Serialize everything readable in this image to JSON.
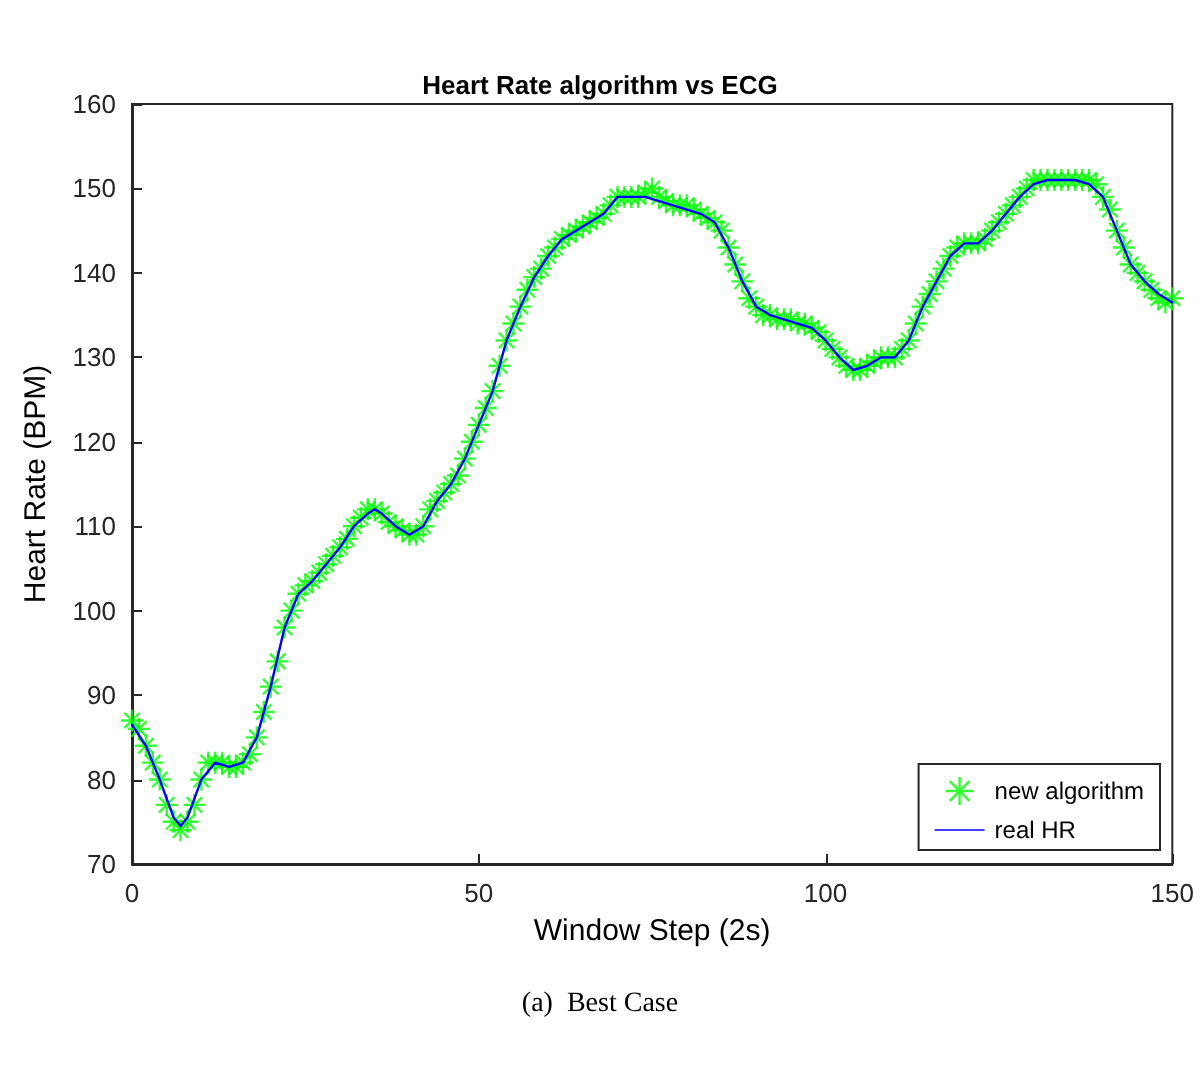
{
  "chart_data": {
    "type": "line",
    "title": "Heart Rate algorithm vs ECG",
    "xlabel": "Window Step (2s)",
    "ylabel": "Heart Rate (BPM)",
    "annotations": [
      "(a)  Best Case"
    ],
    "xlim": [
      0,
      150
    ],
    "xticks": [
      0,
      50,
      100,
      150
    ],
    "ylim": [
      70,
      160
    ],
    "yticks": [
      70,
      80,
      90,
      100,
      110,
      120,
      130,
      140,
      150,
      160
    ],
    "grid": false,
    "legend": "bottom right",
    "series": [
      {
        "name": "new algorithm",
        "type": "scatter",
        "marker": "cross",
        "color": "#00ff00",
        "x": [
          0,
          1,
          2,
          3,
          4,
          5,
          6,
          7,
          8,
          9,
          10,
          11,
          12,
          13,
          14,
          15,
          16,
          17,
          18,
          19,
          20,
          21,
          22,
          23,
          24,
          25,
          26,
          27,
          28,
          29,
          30,
          31,
          32,
          33,
          34,
          35,
          36,
          37,
          38,
          39,
          40,
          41,
          42,
          43,
          44,
          45,
          46,
          47,
          48,
          49,
          50,
          51,
          52,
          53,
          54,
          55,
          56,
          57,
          58,
          59,
          60,
          61,
          62,
          63,
          64,
          65,
          66,
          67,
          68,
          69,
          70,
          71,
          72,
          73,
          74,
          75,
          76,
          77,
          78,
          79,
          80,
          81,
          82,
          83,
          84,
          85,
          86,
          87,
          88,
          89,
          90,
          91,
          92,
          93,
          94,
          95,
          96,
          97,
          98,
          99,
          100,
          101,
          102,
          103,
          104,
          105,
          106,
          107,
          108,
          109,
          110,
          111,
          112,
          113,
          114,
          115,
          116,
          117,
          118,
          119,
          120,
          121,
          122,
          123,
          124,
          125,
          126,
          127,
          128,
          129,
          130,
          131,
          132,
          133,
          134,
          135,
          136,
          137,
          138,
          139,
          140,
          141,
          142,
          143,
          144,
          145,
          146,
          147,
          148,
          149,
          150
        ],
        "values": [
          87,
          86,
          84,
          82,
          80,
          77,
          75,
          74,
          75,
          77,
          80,
          82,
          82,
          82,
          81.5,
          81.5,
          82,
          83,
          85,
          88,
          91,
          94,
          98,
          100,
          102,
          103,
          103.5,
          104.5,
          105.5,
          106.5,
          107.5,
          108.5,
          110,
          111,
          112,
          112,
          111.5,
          110.5,
          110,
          109.5,
          109,
          109,
          110,
          112,
          113,
          114,
          115,
          116,
          118,
          120,
          122,
          124,
          126,
          129,
          132,
          134,
          136,
          138,
          139.5,
          140.5,
          142,
          143,
          144,
          144.5,
          145,
          145.5,
          146,
          146.5,
          147,
          148,
          149,
          149,
          149,
          149,
          149.5,
          150,
          149,
          148.5,
          148,
          148,
          148,
          147.5,
          147,
          146.5,
          146,
          145,
          143,
          141,
          139,
          137,
          136,
          135,
          135,
          134.5,
          134.5,
          134.5,
          134,
          134,
          133.5,
          133,
          132,
          131,
          130,
          129,
          128.5,
          128.5,
          129,
          129.5,
          130,
          130,
          130,
          131,
          132,
          134,
          136,
          137.5,
          139,
          140.5,
          142,
          143,
          143.5,
          143.5,
          143.5,
          144,
          145,
          146,
          147,
          148,
          149,
          150,
          151,
          151,
          151,
          151,
          151,
          151,
          151,
          151,
          151,
          150.5,
          149,
          147.5,
          145,
          143,
          141,
          140,
          139,
          138,
          137,
          136.5,
          137
        ]
      },
      {
        "name": "real HR",
        "color": "#0000ff",
        "x": [
          0,
          2,
          4,
          6,
          7,
          8,
          10,
          12,
          14,
          16,
          18,
          20,
          22,
          24,
          26,
          28,
          30,
          32,
          34,
          35,
          36,
          38,
          40,
          42,
          44,
          46,
          48,
          50,
          52,
          54,
          56,
          58,
          60,
          62,
          64,
          66,
          68,
          70,
          72,
          74,
          76,
          78,
          80,
          82,
          84,
          86,
          88,
          90,
          92,
          94,
          96,
          98,
          100,
          102,
          104,
          106,
          108,
          110,
          112,
          114,
          116,
          118,
          120,
          122,
          124,
          126,
          128,
          130,
          132,
          134,
          136,
          138,
          140,
          142,
          144,
          146,
          148,
          150
        ],
        "values": [
          86.5,
          84,
          80,
          75.5,
          74.5,
          75.5,
          80,
          82,
          81.5,
          82,
          85,
          91,
          98,
          102,
          103.5,
          105.5,
          107.5,
          110,
          111.5,
          112,
          111.5,
          110,
          109,
          110,
          113,
          115,
          118,
          122,
          126,
          132,
          136,
          139.5,
          142,
          144,
          145,
          146,
          147,
          149,
          149,
          149,
          148.5,
          148,
          147.5,
          147,
          146,
          143,
          139,
          136,
          135,
          134.5,
          134,
          133.5,
          132,
          130,
          128.5,
          129,
          130,
          130,
          132,
          136,
          139,
          142,
          143.5,
          143.5,
          145,
          147,
          149,
          150.5,
          151,
          151,
          151,
          150.5,
          149,
          145,
          141,
          139,
          137.5,
          136.5
        ]
      }
    ]
  }
}
